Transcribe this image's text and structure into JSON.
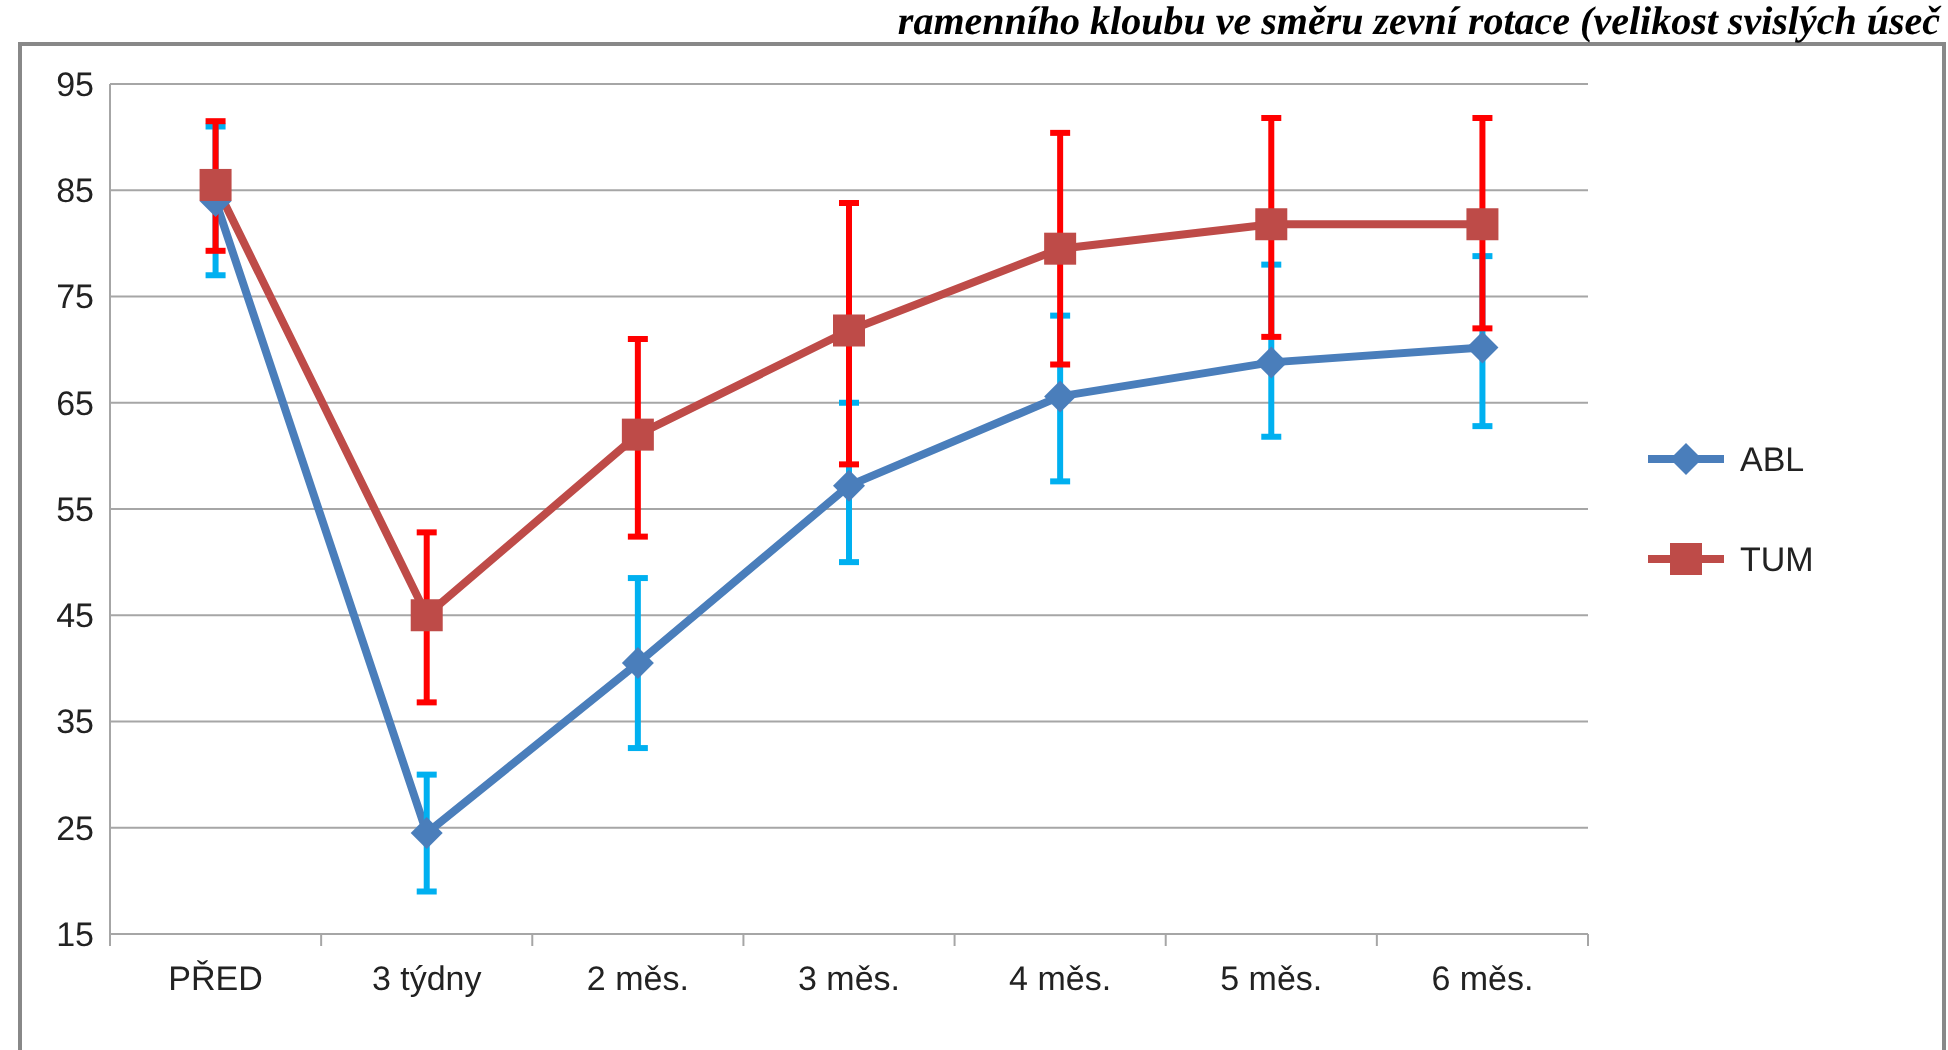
{
  "chart_data": {
    "type": "line",
    "title": "ramenního kloubu ve směru zevní rotace (velikost svislých úseč",
    "categories": [
      "PŘED",
      "3 týdny",
      "2 měs.",
      "3 měs.",
      "4 měs.",
      "5 měs.",
      "6 měs."
    ],
    "series": [
      {
        "name": "ABL",
        "color": "#4a7ebb",
        "marker": "diamond",
        "values": [
          84,
          24.5,
          40.5,
          57.2,
          65.6,
          68.8,
          70.2
        ],
        "errors": [
          [
            77,
            91
          ],
          [
            19,
            30
          ],
          [
            32.5,
            48.5
          ],
          [
            50,
            65
          ],
          [
            57.6,
            73.2
          ],
          [
            61.8,
            78
          ],
          [
            62.8,
            78.8
          ]
        ]
      },
      {
        "name": "TUM",
        "color": "#be4b48",
        "marker": "square",
        "values": [
          85.5,
          45,
          62,
          71.8,
          79.5,
          81.8,
          81.8
        ],
        "errors": [
          [
            79.3,
            91.5
          ],
          [
            36.8,
            52.8
          ],
          [
            52.4,
            71
          ],
          [
            59.2,
            83.8
          ],
          [
            68.6,
            90.4
          ],
          [
            71.2,
            91.8
          ],
          [
            72,
            91.8
          ]
        ]
      }
    ],
    "ylim": [
      15,
      95
    ],
    "yticks": [
      15,
      25,
      35,
      45,
      55,
      65,
      75,
      85,
      95
    ],
    "grid": "y",
    "legend": "right",
    "line_style": "solid"
  }
}
